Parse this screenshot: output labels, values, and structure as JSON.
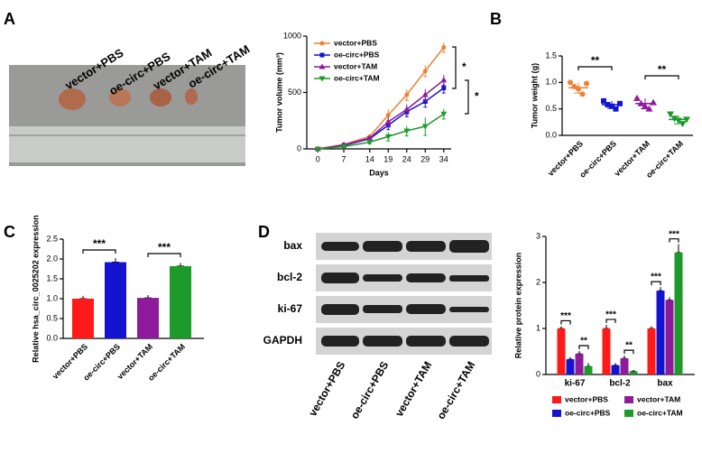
{
  "panel_labels": [
    "A",
    "B",
    "C",
    "D"
  ],
  "photo_labels": [
    "vector+PBS",
    "oe-circ+PBS",
    "vector+TAM",
    "oe-circ+TAM"
  ],
  "blot": {
    "rows": [
      "bax",
      "bcl-2",
      "ki-67",
      "GAPDH"
    ],
    "lanes": [
      "vector+PBS",
      "oe-circ+PBS",
      "vector+TAM",
      "oe-circ+TAM"
    ]
  },
  "chart_data": [
    {
      "type": "line",
      "ylabel": "Tumor volume (mm³)",
      "xlabel": "Days",
      "x": [
        0,
        7,
        14,
        19,
        24,
        29,
        34
      ],
      "xlim": [
        -3,
        36
      ],
      "xticks": [
        0,
        7,
        14,
        19,
        24,
        29,
        34
      ],
      "ylim": [
        0,
        1000
      ],
      "yticks": [
        0,
        500,
        1000
      ],
      "legend": "upper left",
      "series": [
        {
          "name": "vector+PBS",
          "color": "#f08030",
          "marker": "circle",
          "values": [
            0,
            40,
            110,
            300,
            480,
            690,
            900
          ],
          "errors": [
            5,
            10,
            15,
            50,
            50,
            50,
            45
          ]
        },
        {
          "name": "oe-circ+PBS",
          "color": "#1414d0",
          "marker": "square",
          "values": [
            0,
            30,
            90,
            210,
            330,
            420,
            540
          ],
          "errors": [
            5,
            10,
            15,
            40,
            45,
            50,
            45
          ]
        },
        {
          "name": "vector+TAM",
          "color": "#8e1b9b",
          "marker": "triangle",
          "values": [
            0,
            35,
            95,
            240,
            350,
            480,
            610
          ],
          "errors": [
            5,
            10,
            15,
            45,
            45,
            50,
            45
          ]
        },
        {
          "name": "oe-circ+TAM",
          "color": "#1d9a2a",
          "marker": "triangle-down",
          "values": [
            0,
            20,
            60,
            110,
            160,
            200,
            310
          ],
          "errors": [
            5,
            10,
            15,
            40,
            45,
            80,
            45
          ]
        }
      ],
      "annotations": [
        {
          "text": "*"
        },
        {
          "text": "*"
        }
      ]
    },
    {
      "type": "dot",
      "ylabel": "Tumor weight (g)",
      "categories": [
        "vector+PBS",
        "oe-circ+PBS",
        "vector+TAM",
        "oe-circ+TAM"
      ],
      "colors": [
        "#f08030",
        "#1414d0",
        "#8e1b9b",
        "#1d9a2a"
      ],
      "values": [
        [
          1.0,
          0.92,
          0.88,
          0.78,
          0.98
        ],
        [
          0.65,
          0.58,
          0.55,
          0.5,
          0.6
        ],
        [
          0.7,
          0.6,
          0.55,
          0.5,
          0.62
        ],
        [
          0.4,
          0.32,
          0.28,
          0.22,
          0.3
        ]
      ],
      "means": [
        0.9,
        0.58,
        0.6,
        0.3
      ],
      "sds": [
        0.1,
        0.07,
        0.1,
        0.08
      ],
      "ylim": [
        0,
        1.5
      ],
      "yticks": [
        {
          "value": 0,
          "label": "0.0"
        },
        {
          "value": 0.5,
          "label": "0.5"
        },
        {
          "value": 1,
          "label": "1.0"
        },
        {
          "value": 1.5,
          "label": "1.5"
        }
      ],
      "annotations": [
        {
          "text": "**"
        },
        {
          "text": "**"
        }
      ]
    },
    {
      "type": "bar",
      "ylabel": "Relative hsa_circ_0025202 expression",
      "categories": [
        "vector+PBS",
        "oe-circ+PBS",
        "vector+TAM",
        "oe-circ+TAM"
      ],
      "colors": [
        "#ff1a1a",
        "#1414d0",
        "#8e1b9b",
        "#1d9a2a"
      ],
      "values": [
        1.0,
        1.92,
        1.02,
        1.82
      ],
      "errors": [
        0.07,
        0.1,
        0.07,
        0.08
      ],
      "ylim": [
        0,
        2.5
      ],
      "yticks": [
        {
          "value": 0,
          "label": "0.0"
        },
        {
          "value": 0.5,
          "label": "0.5"
        },
        {
          "value": 1,
          "label": "1.0"
        },
        {
          "value": 1.5,
          "label": "1.5"
        },
        {
          "value": 2,
          "label": "2.0"
        },
        {
          "value": 2.5,
          "label": "2.5"
        }
      ],
      "annotations": [
        {
          "text": "***"
        },
        {
          "text": "***"
        }
      ]
    },
    {
      "type": "grouped-bar",
      "ylabel": "Relative protein expression",
      "categories": [
        "ki-67",
        "bcl-2",
        "bax"
      ],
      "ylim": [
        0,
        3
      ],
      "yticks": [
        0,
        1,
        2,
        3
      ],
      "legend": "bottom",
      "series": [
        {
          "name": "vector+PBS",
          "color": "#ff1a1a",
          "values": [
            1.0,
            1.0,
            1.0
          ],
          "errors": [
            0.05,
            0.08,
            0.05
          ]
        },
        {
          "name": "oe-circ+PBS",
          "color": "#1414d0",
          "values": [
            0.33,
            0.2,
            1.82
          ],
          "errors": [
            0.05,
            0.05,
            0.08
          ]
        },
        {
          "name": "vector+TAM",
          "color": "#8e1b9b",
          "values": [
            0.45,
            0.35,
            1.62
          ],
          "errors": [
            0.06,
            0.06,
            0.06
          ]
        },
        {
          "name": "oe-circ+TAM",
          "color": "#1d9a2a",
          "values": [
            0.18,
            0.07,
            2.65
          ],
          "errors": [
            0.07,
            0.03,
            0.18
          ]
        }
      ],
      "annotations": [
        {
          "text": "***"
        },
        {
          "text": "**"
        },
        {
          "text": "***"
        },
        {
          "text": "**"
        },
        {
          "text": "***"
        },
        {
          "text": "***"
        }
      ]
    }
  ]
}
